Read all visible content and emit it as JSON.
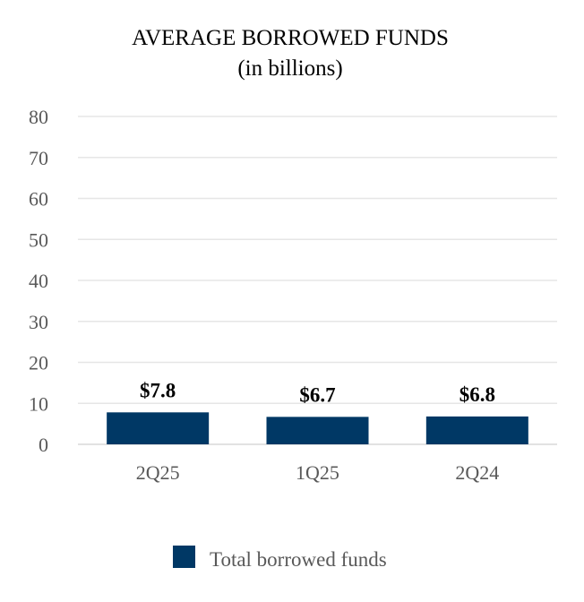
{
  "chart_data": {
    "type": "bar",
    "title": "AVERAGE BORROWED FUNDS",
    "subtitle": "(in billions)",
    "categories": [
      "2Q25",
      "1Q25",
      "2Q24"
    ],
    "series": [
      {
        "name": "Total borrowed funds",
        "values": [
          7.8,
          6.7,
          6.8
        ],
        "color": "#003865"
      }
    ],
    "data_labels": [
      "$7.8",
      "$6.7",
      "$6.8"
    ],
    "yticks": [
      0,
      10,
      20,
      30,
      40,
      50,
      60,
      70,
      80
    ],
    "ylim": [
      0,
      80
    ],
    "xlabel": "",
    "ylabel": "",
    "grid": true,
    "legend_position": "bottom"
  }
}
